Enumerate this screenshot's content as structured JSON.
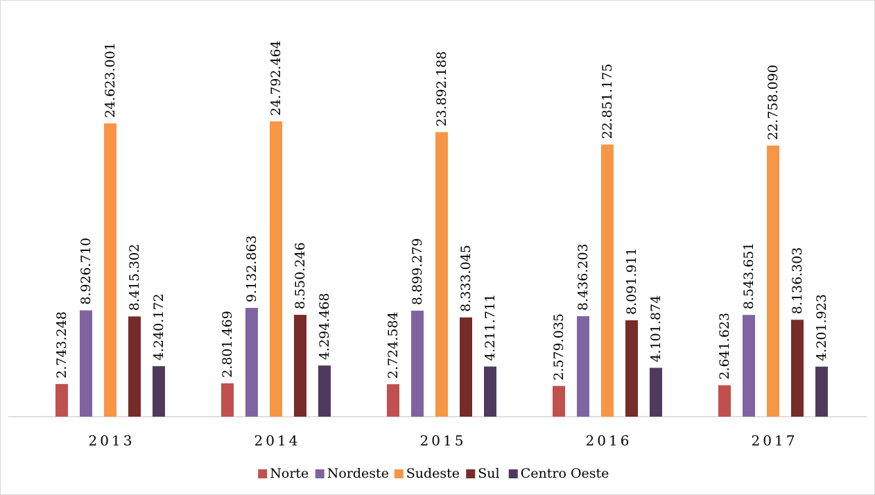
{
  "chart_data": {
    "type": "bar",
    "categories": [
      "2013",
      "2014",
      "2015",
      "2016",
      "2017"
    ],
    "ylim": [
      0,
      34400000
    ],
    "legend": "bottom",
    "series": [
      {
        "name": "Norte",
        "color": "#c0504d",
        "values": [
          2743248,
          2801469,
          2724584,
          2579035,
          2641623
        ],
        "value_labels": [
          "2.743.248",
          "2.801.469",
          "2.724.584",
          "2.579.035",
          "2.641.623"
        ]
      },
      {
        "name": "Nordeste",
        "color": "#8064a2",
        "values": [
          8926710,
          9132863,
          8899279,
          8436203,
          8543651
        ],
        "value_labels": [
          "8.926.710",
          "9.132.863",
          "8.899.279",
          "8.436.203",
          "8.543.651"
        ]
      },
      {
        "name": "Sudeste",
        "color": "#f79646",
        "values": [
          24623001,
          24792464,
          23892188,
          22851175,
          22758090
        ],
        "value_labels": [
          "24.623.001",
          "24.792.464",
          "23.892.188",
          "22.851.175",
          "22.758.090"
        ]
      },
      {
        "name": "Sul",
        "color": "#772c2a",
        "values": [
          8415302,
          8550246,
          8333045,
          8091911,
          8136303
        ],
        "value_labels": [
          "8.415.302",
          "8.550.246",
          "8.333.045",
          "8.091.911",
          "8.136.303"
        ]
      },
      {
        "name": "Centro Oeste",
        "color": "#4f3a5e",
        "values": [
          4240172,
          4294468,
          4211711,
          4101874,
          4201923
        ],
        "value_labels": [
          "4.240.172",
          "4.294.468",
          "4.211.711",
          "4.101.874",
          "4.201.923"
        ]
      }
    ]
  }
}
